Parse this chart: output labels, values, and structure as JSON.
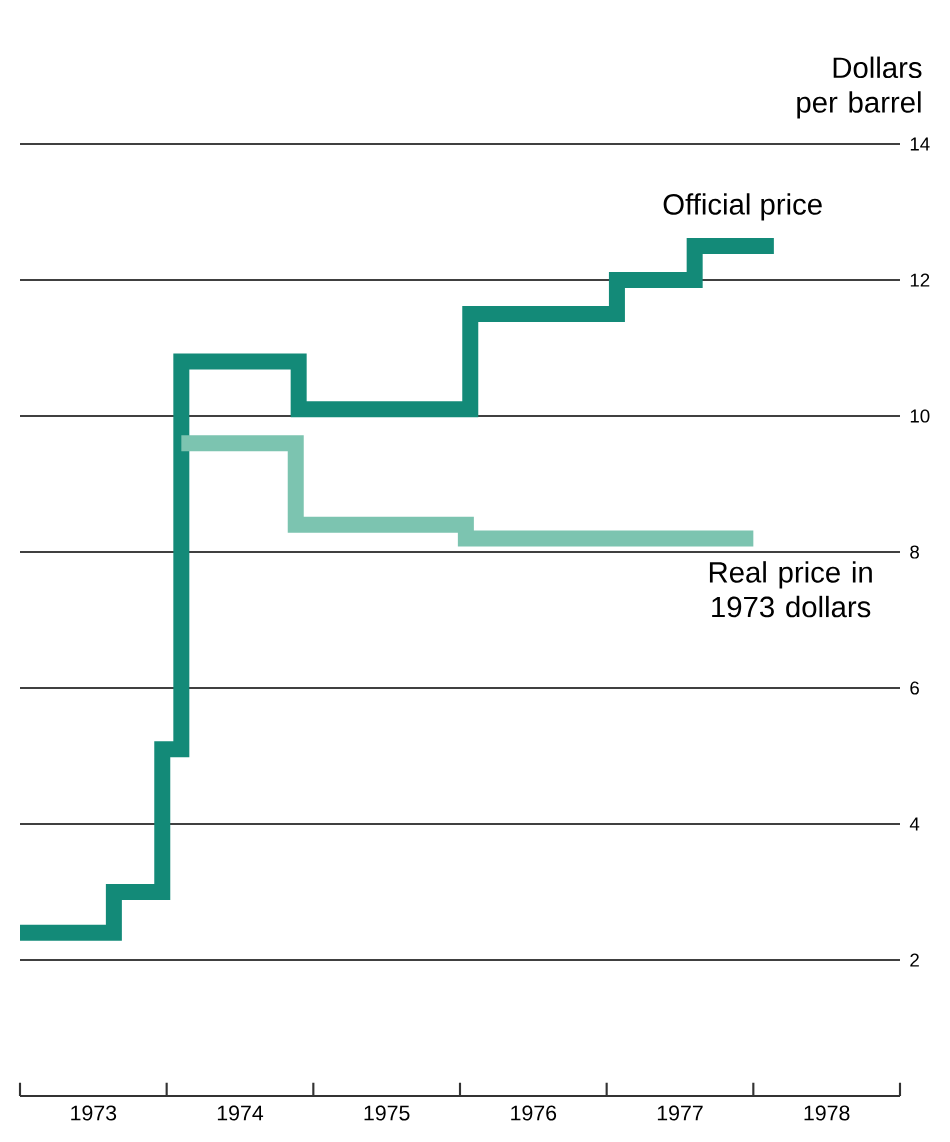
{
  "chart_data": {
    "type": "step",
    "ylabel": "Dollars per barrel",
    "series": [
      {
        "name": "Official price",
        "color": "#138a78",
        "x": [
          1973.0,
          1973.64,
          1973.97,
          1974.1,
          1974.9,
          1976.07,
          1977.07,
          1977.6,
          1978.14
        ],
        "values": [
          2.4,
          3.0,
          5.1,
          10.8,
          10.1,
          11.5,
          12.0,
          12.5,
          12.5
        ]
      },
      {
        "name": "Real price in 1973 dollars",
        "color": "#7cc4b0",
        "x": [
          1974.1,
          1974.88,
          1976.04,
          1978.0
        ],
        "values": [
          9.6,
          8.4,
          8.2,
          8.2
        ]
      }
    ],
    "xlim": [
      1973,
      1979
    ],
    "xticks": [
      {
        "value": 1973,
        "label": null
      },
      {
        "value": 1973.5,
        "label": "1973"
      },
      {
        "value": 1974,
        "label": null
      },
      {
        "value": 1974.5,
        "label": "1974"
      },
      {
        "value": 1975,
        "label": null
      },
      {
        "value": 1975.5,
        "label": "1975"
      },
      {
        "value": 1976,
        "label": null
      },
      {
        "value": 1976.5,
        "label": "1976"
      },
      {
        "value": 1977,
        "label": null
      },
      {
        "value": 1977.5,
        "label": "1977"
      },
      {
        "value": 1978,
        "label": null
      },
      {
        "value": 1978.5,
        "label": "1978"
      },
      {
        "value": 1979,
        "label": null
      }
    ],
    "ylim": [
      0,
      14
    ],
    "yticks": [
      2,
      4,
      6,
      8,
      10,
      12,
      14
    ],
    "grid": "y"
  }
}
